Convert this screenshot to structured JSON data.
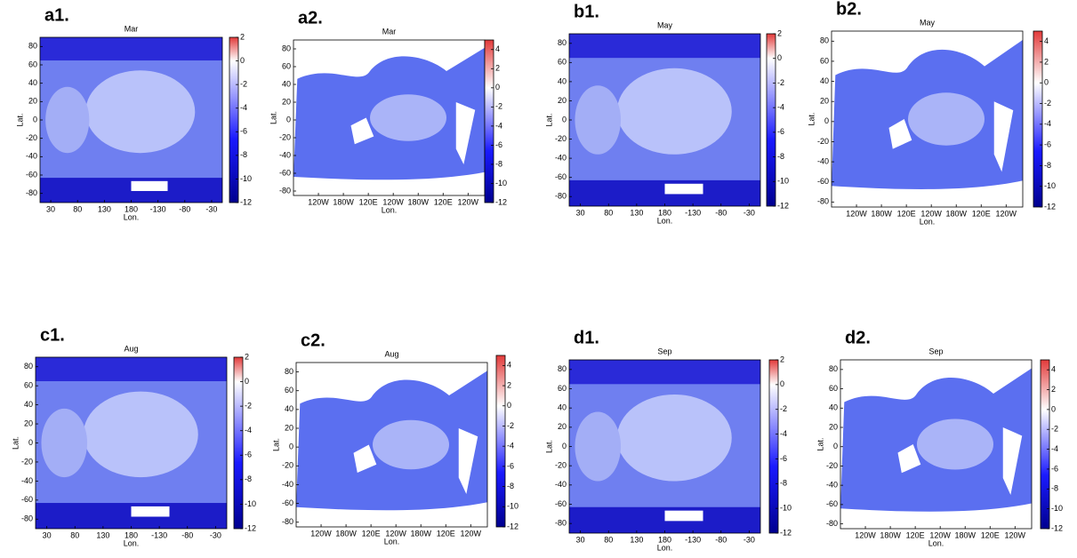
{
  "chart_data": [
    {
      "type": "map",
      "panel": "a1.",
      "title": "Mar",
      "xlabel": "Lon.",
      "ylabel": "Lat.",
      "style": "grid",
      "xlim": [
        10,
        350
      ],
      "xticks": [
        30,
        80,
        130,
        180,
        {
          "value": 230,
          "label": "-130"
        },
        {
          "value": 280,
          "label": "-80"
        },
        {
          "value": 330,
          "label": "-30"
        }
      ],
      "ylim": [
        -90,
        90
      ],
      "yticks": [
        80,
        60,
        40,
        20,
        0,
        -20,
        -40,
        -60,
        -80
      ],
      "clim": [
        -12,
        2
      ],
      "cticks": [
        2,
        0,
        -2,
        -4,
        -6,
        -8,
        -10,
        -12
      ]
    },
    {
      "type": "map",
      "panel": "a2.",
      "title": "Mar",
      "xlabel": "Lon.",
      "ylabel": "Lat.",
      "style": "ocean",
      "xlim": [
        0,
        460
      ],
      "xticks": [
        {
          "value": 60,
          "label": "120W"
        },
        {
          "value": 120,
          "label": "180W"
        },
        {
          "value": 180,
          "label": "120E"
        },
        {
          "value": 240,
          "label": "120W"
        },
        {
          "value": 300,
          "label": "180W"
        },
        {
          "value": 360,
          "label": "120E"
        },
        {
          "value": 420,
          "label": "120W"
        }
      ],
      "ylim": [
        -85,
        90
      ],
      "yticks": [
        80,
        60,
        40,
        20,
        0,
        -20,
        -40,
        -60,
        -80
      ],
      "clim": [
        -12,
        5
      ],
      "cticks": [
        4,
        2,
        0,
        -2,
        -4,
        -6,
        -8,
        -10,
        -12
      ]
    },
    {
      "type": "map",
      "panel": "b1.",
      "title": "May",
      "xlabel": "Lon.",
      "ylabel": "Lat.",
      "style": "grid",
      "xlim": [
        10,
        350
      ],
      "xticks": [
        30,
        80,
        130,
        180,
        {
          "value": 230,
          "label": "-130"
        },
        {
          "value": 280,
          "label": "-80"
        },
        {
          "value": 330,
          "label": "-30"
        }
      ],
      "ylim": [
        -90,
        90
      ],
      "yticks": [
        80,
        60,
        40,
        20,
        0,
        -20,
        -40,
        -60,
        -80
      ],
      "clim": [
        -12,
        2
      ],
      "cticks": [
        2,
        0,
        -2,
        -4,
        -6,
        -8,
        -10,
        -12
      ]
    },
    {
      "type": "map",
      "panel": "b2.",
      "title": "May",
      "xlabel": "Lon.",
      "ylabel": "Lat.",
      "style": "ocean",
      "xlim": [
        0,
        460
      ],
      "xticks": [
        {
          "value": 60,
          "label": "120W"
        },
        {
          "value": 120,
          "label": "180W"
        },
        {
          "value": 180,
          "label": "120E"
        },
        {
          "value": 240,
          "label": "120W"
        },
        {
          "value": 300,
          "label": "180W"
        },
        {
          "value": 360,
          "label": "120E"
        },
        {
          "value": 420,
          "label": "120W"
        }
      ],
      "ylim": [
        -85,
        90
      ],
      "yticks": [
        80,
        60,
        40,
        20,
        0,
        -20,
        -40,
        -60,
        -80
      ],
      "clim": [
        -12,
        5
      ],
      "cticks": [
        4,
        2,
        0,
        -2,
        -4,
        -6,
        -8,
        -10,
        -12
      ]
    },
    {
      "type": "map",
      "panel": "c1.",
      "title": "Aug",
      "xlabel": "Lon.",
      "ylabel": "Lat.",
      "style": "grid",
      "xlim": [
        10,
        350
      ],
      "xticks": [
        30,
        80,
        130,
        180,
        {
          "value": 230,
          "label": "-130"
        },
        {
          "value": 280,
          "label": "-80"
        },
        {
          "value": 330,
          "label": "-30"
        }
      ],
      "ylim": [
        -90,
        90
      ],
      "yticks": [
        80,
        60,
        40,
        20,
        0,
        -20,
        -40,
        -60,
        -80
      ],
      "clim": [
        -12,
        2
      ],
      "cticks": [
        2,
        0,
        -2,
        -4,
        -6,
        -8,
        -10,
        -12
      ]
    },
    {
      "type": "map",
      "panel": "c2.",
      "title": "Aug",
      "xlabel": "Lon.",
      "ylabel": "Lat.",
      "style": "ocean",
      "xlim": [
        0,
        460
      ],
      "xticks": [
        {
          "value": 60,
          "label": "120W"
        },
        {
          "value": 120,
          "label": "180W"
        },
        {
          "value": 180,
          "label": "120E"
        },
        {
          "value": 240,
          "label": "120W"
        },
        {
          "value": 300,
          "label": "180W"
        },
        {
          "value": 360,
          "label": "120E"
        },
        {
          "value": 420,
          "label": "120W"
        }
      ],
      "ylim": [
        -85,
        90
      ],
      "yticks": [
        80,
        60,
        40,
        20,
        0,
        -20,
        -40,
        -60,
        -80
      ],
      "clim": [
        -12,
        5
      ],
      "cticks": [
        4,
        2,
        0,
        -2,
        -4,
        -6,
        -8,
        -10,
        -12
      ]
    },
    {
      "type": "map",
      "panel": "d1.",
      "title": "Sep",
      "xlabel": "Lon.",
      "ylabel": "Lat.",
      "style": "grid",
      "xlim": [
        10,
        350
      ],
      "xticks": [
        30,
        80,
        130,
        180,
        {
          "value": 230,
          "label": "-130"
        },
        {
          "value": 280,
          "label": "-80"
        },
        {
          "value": 330,
          "label": "-30"
        }
      ],
      "ylim": [
        -90,
        90
      ],
      "yticks": [
        80,
        60,
        40,
        20,
        0,
        -20,
        -40,
        -60,
        -80
      ],
      "clim": [
        -12,
        2
      ],
      "cticks": [
        2,
        0,
        -2,
        -4,
        -6,
        -8,
        -10,
        -12
      ]
    },
    {
      "type": "map",
      "panel": "d2.",
      "title": "Sep",
      "xlabel": "Lon.",
      "ylabel": "Lat.",
      "style": "ocean",
      "xlim": [
        0,
        460
      ],
      "xticks": [
        {
          "value": 60,
          "label": "120W"
        },
        {
          "value": 120,
          "label": "180W"
        },
        {
          "value": 180,
          "label": "120E"
        },
        {
          "value": 240,
          "label": "120W"
        },
        {
          "value": 300,
          "label": "180W"
        },
        {
          "value": 360,
          "label": "120E"
        },
        {
          "value": 420,
          "label": "120W"
        }
      ],
      "ylim": [
        -85,
        90
      ],
      "yticks": [
        80,
        60,
        40,
        20,
        0,
        -20,
        -40,
        -60,
        -80
      ],
      "clim": [
        -12,
        5
      ],
      "cticks": [
        4,
        2,
        0,
        -2,
        -4,
        -6,
        -8,
        -10,
        -12
      ]
    }
  ]
}
